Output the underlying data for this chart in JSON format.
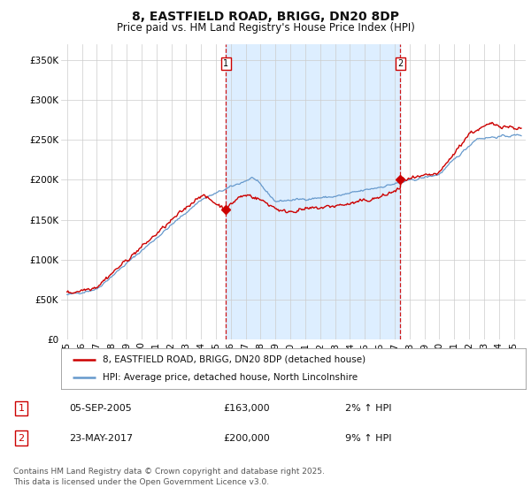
{
  "title": "8, EASTFIELD ROAD, BRIGG, DN20 8DP",
  "subtitle": "Price paid vs. HM Land Registry's House Price Index (HPI)",
  "ylabel_ticks": [
    "£0",
    "£50K",
    "£100K",
    "£150K",
    "£200K",
    "£250K",
    "£300K",
    "£350K"
  ],
  "ytick_values": [
    0,
    50000,
    100000,
    150000,
    200000,
    250000,
    300000,
    350000
  ],
  "ylim": [
    0,
    370000
  ],
  "xlim_start": 1994.6,
  "xlim_end": 2025.8,
  "xtick_years": [
    1995,
    1996,
    1997,
    1998,
    1999,
    2000,
    2001,
    2002,
    2003,
    2004,
    2005,
    2006,
    2007,
    2008,
    2009,
    2010,
    2011,
    2012,
    2013,
    2014,
    2015,
    2016,
    2017,
    2018,
    2019,
    2020,
    2021,
    2022,
    2023,
    2024,
    2025
  ],
  "bg_color": "#ffffff",
  "plot_bg_color": "#ffffff",
  "grid_color": "#cccccc",
  "shade_color": "#ddeeff",
  "red_line_color": "#cc0000",
  "blue_line_color": "#6699cc",
  "marker1_x": 2005.68,
  "marker1_y": 163000,
  "marker2_x": 2017.39,
  "marker2_y": 200000,
  "legend_label_red": "8, EASTFIELD ROAD, BRIGG, DN20 8DP (detached house)",
  "legend_label_blue": "HPI: Average price, detached house, North Lincolnshire",
  "table_rows": [
    [
      "1",
      "05-SEP-2005",
      "£163,000",
      "2% ↑ HPI"
    ],
    [
      "2",
      "23-MAY-2017",
      "£200,000",
      "9% ↑ HPI"
    ]
  ],
  "footer": "Contains HM Land Registry data © Crown copyright and database right 2025.\nThis data is licensed under the Open Government Licence v3.0.",
  "title_fontsize": 10,
  "subtitle_fontsize": 8.5,
  "tick_fontsize": 7.5,
  "legend_fontsize": 7.5,
  "table_fontsize": 8,
  "footer_fontsize": 6.5
}
